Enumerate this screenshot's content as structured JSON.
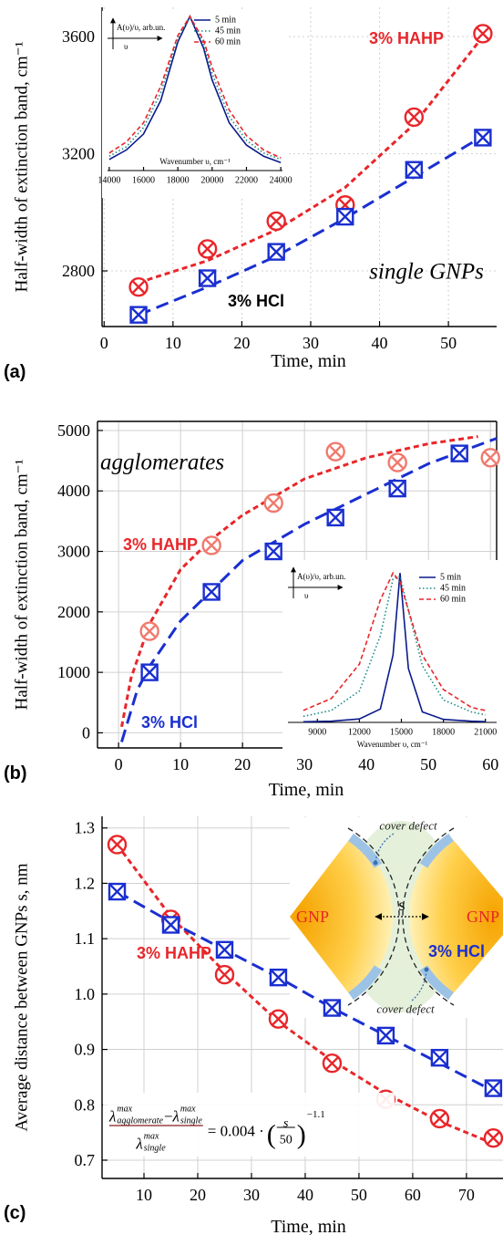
{
  "chart_data": [
    {
      "type": "scatter",
      "panel_label": "(a)",
      "x_label": "Time, min",
      "y_label": "Half-width of extinction band, cm⁻¹",
      "xlim": [
        -0.3,
        57
      ],
      "xticks": [
        0,
        10,
        20,
        30,
        40,
        50
      ],
      "ylim": [
        2610,
        3700
      ],
      "yticks": [
        2800,
        3200,
        3600
      ],
      "grid": true,
      "series": [
        {
          "name": "3% HAHP",
          "color": "#e8262a",
          "marker": "circle-x",
          "x": [
            5,
            15,
            25,
            35,
            45,
            55
          ],
          "values": [
            2745,
            2875,
            2970,
            3025,
            3325,
            3610
          ]
        },
        {
          "name": "3% HCl",
          "color": "#1a2fd0",
          "label_color": "#000000",
          "marker": "square-x",
          "x": [
            5,
            15,
            25,
            35,
            45,
            55
          ],
          "values": [
            2650,
            2775,
            2865,
            2985,
            3145,
            3255
          ]
        }
      ],
      "fits": [
        {
          "color": "#e8262a",
          "dash": "short",
          "x": [
            5,
            15,
            25,
            35,
            45,
            55
          ],
          "values": [
            2760,
            2835,
            2940,
            3085,
            3300,
            3600
          ]
        },
        {
          "color": "#1a2fd0",
          "dash": "long",
          "x": [
            5,
            15,
            25,
            35,
            45,
            55
          ],
          "values": [
            2650,
            2745,
            2850,
            2980,
            3120,
            3260
          ]
        }
      ],
      "annotations": [
        "single GNPs"
      ]
    },
    {
      "type": "line",
      "x_label": "Wavenumber υ, cm⁻¹",
      "y_label": "A(υ)/υ, arb.un.",
      "x_arrow_label": "υ",
      "xlim": [
        13900,
        24100
      ],
      "xticks": [
        14000,
        16000,
        18000,
        20000,
        22000,
        24000
      ],
      "ylim": [
        0.03,
        1.0
      ],
      "series": [
        {
          "name": "5 min",
          "color": "#0a1a8c",
          "dash": "solid",
          "x": [
            14000,
            15000,
            16000,
            17000,
            18000,
            18700,
            19500,
            20000,
            21000,
            22000,
            23000,
            24000
          ],
          "values": [
            0.1,
            0.16,
            0.26,
            0.47,
            0.84,
            1,
            0.8,
            0.6,
            0.33,
            0.19,
            0.12,
            0.08
          ]
        },
        {
          "name": "45 min",
          "color": "#1a8a8a",
          "dash": "dot",
          "x": [
            14000,
            15000,
            16000,
            17000,
            18000,
            18700,
            19500,
            20000,
            21000,
            22000,
            23000,
            24000
          ],
          "values": [
            0.12,
            0.18,
            0.3,
            0.52,
            0.86,
            1,
            0.83,
            0.64,
            0.37,
            0.22,
            0.14,
            0.1
          ]
        },
        {
          "name": "60 min",
          "color": "#e8262a",
          "dash": "dash",
          "x": [
            14000,
            15000,
            16000,
            17000,
            18000,
            18700,
            19500,
            20000,
            21000,
            22000,
            23000,
            24000
          ],
          "values": [
            0.14,
            0.21,
            0.33,
            0.56,
            0.88,
            1,
            0.85,
            0.68,
            0.41,
            0.25,
            0.16,
            0.11
          ]
        }
      ]
    },
    {
      "type": "scatter",
      "panel_label": "(b)",
      "x_label": "Time, min",
      "y_label": "Half-width of extinction band, cm⁻¹",
      "xlim": [
        -3.4,
        61
      ],
      "xticks": [
        0,
        10,
        20,
        30,
        40,
        50,
        60
      ],
      "ylim": [
        -250,
        5150
      ],
      "yticks": [
        0,
        1000,
        2000,
        3000,
        4000,
        5000
      ],
      "grid": true,
      "series": [
        {
          "name": "3% HAHP",
          "color": "#f07a6e",
          "label_color": "#e8262a",
          "marker": "circle-x",
          "x": [
            5,
            15,
            25,
            35,
            45,
            60
          ],
          "values": [
            1680,
            3100,
            3800,
            4650,
            4470,
            4550
          ]
        },
        {
          "name": "3% HCl",
          "color": "#1a2fd0",
          "marker": "square-x",
          "x": [
            5,
            15,
            25,
            35,
            45,
            55
          ],
          "values": [
            1000,
            2330,
            3000,
            3560,
            4040,
            4620
          ]
        }
      ],
      "fits": [
        {
          "color": "#e8262a",
          "dash": "short",
          "x": [
            0.5,
            2,
            5,
            10,
            15,
            20,
            30,
            40,
            50,
            58
          ],
          "values": [
            100,
            900,
            1800,
            2700,
            3200,
            3600,
            4200,
            4550,
            4780,
            4900
          ]
        },
        {
          "color": "#1a2fd0",
          "dash": "long",
          "x": [
            0.5,
            3,
            5,
            10,
            20,
            30,
            40,
            50,
            61
          ],
          "values": [
            -150,
            700,
            1100,
            1850,
            2850,
            3450,
            3950,
            4450,
            4870
          ]
        }
      ],
      "annotations": [
        "agglomerates"
      ]
    },
    {
      "type": "line",
      "x_label": "Wavenumber υ, cm⁻¹",
      "y_label": "A(υ)/υ, arb.un.",
      "x_arrow_label": "υ",
      "xlim": [
        6900,
        21800
      ],
      "xticks": [
        9000,
        12000,
        15000,
        18000,
        21000
      ],
      "ylim": [
        0,
        1.05
      ],
      "series": [
        {
          "name": "5 min",
          "color": "#0a1a8c",
          "dash": "solid",
          "x": [
            8000,
            10000,
            12000,
            13500,
            14400,
            14900,
            15500,
            16500,
            18000,
            20000,
            21000
          ],
          "values": [
            0.004,
            0.008,
            0.023,
            0.09,
            0.45,
            1,
            0.36,
            0.07,
            0.02,
            0.008,
            0.005
          ]
        },
        {
          "name": "45 min",
          "color": "#1a8a8a",
          "dash": "dot",
          "x": [
            8000,
            10000,
            12000,
            13500,
            14400,
            14900,
            15500,
            16500,
            18000,
            20000,
            21000
          ],
          "values": [
            0.04,
            0.08,
            0.21,
            0.58,
            0.96,
            0.98,
            0.75,
            0.38,
            0.15,
            0.07,
            0.05
          ]
        },
        {
          "name": "60 min",
          "color": "#e8262a",
          "dash": "dash",
          "x": [
            8000,
            10000,
            12000,
            13500,
            14400,
            14900,
            15500,
            16500,
            18000,
            20000,
            21000
          ],
          "values": [
            0.08,
            0.16,
            0.39,
            0.82,
            1,
            0.94,
            0.75,
            0.45,
            0.22,
            0.1,
            0.08
          ]
        }
      ]
    },
    {
      "type": "scatter",
      "panel_label": "(c)",
      "x_label": "Time, min",
      "y_label": "Average distance between GNPs s, nm",
      "xlim": [
        2.2,
        76.8
      ],
      "xticks": [
        10,
        20,
        30,
        40,
        50,
        60,
        70
      ],
      "ylim": [
        0.667,
        1.321
      ],
      "yticks": [
        0.7,
        0.8,
        0.9,
        {
          "value": 1,
          "label": "1.0"
        },
        1.1,
        1.2,
        1.3
      ],
      "grid": true,
      "series": [
        {
          "name": "3% HAHP",
          "color": "#e8262a",
          "marker": "circle-x",
          "x": [
            5,
            15,
            25,
            35,
            45,
            55,
            65,
            75
          ],
          "values": [
            1.27,
            1.135,
            1.035,
            0.955,
            0.875,
            0.81,
            0.775,
            0.74
          ]
        },
        {
          "name": "3% HCl",
          "color": "#1a2fd0",
          "marker": "square-x",
          "x": [
            5,
            15,
            25,
            35,
            45,
            55,
            65,
            75
          ],
          "values": [
            1.185,
            1.125,
            1.08,
            1.03,
            0.975,
            0.925,
            0.885,
            0.83
          ]
        }
      ],
      "fits": [
        {
          "color": "#e8262a",
          "dash": "short",
          "x": [
            5,
            15,
            25,
            35,
            45,
            55,
            65,
            75
          ],
          "values": [
            1.27,
            1.14,
            1.04,
            0.95,
            0.88,
            0.82,
            0.77,
            0.73
          ]
        },
        {
          "color": "#1a2fd0",
          "dash": "long",
          "x": [
            5,
            15,
            25,
            35,
            45,
            55,
            65,
            75
          ],
          "values": [
            1.185,
            1.13,
            1.08,
            1.03,
            0.975,
            0.925,
            0.875,
            0.825
          ]
        }
      ],
      "diagram": {
        "left_label": "GNP",
        "right_label": "GNP",
        "gap_label": "s",
        "defect_labels": [
          "cover defect",
          "cover defect"
        ]
      },
      "formula": {
        "numerator": [
          {
            "base": "λ",
            "sup": "max",
            "sub": "agglomerate"
          },
          {
            "base": " − "
          },
          {
            "base": "λ",
            "sup": "max",
            "sub": "single"
          }
        ],
        "denominator": [
          {
            "base": "λ",
            "sup": "max",
            "sub": "single"
          }
        ],
        "rhs": "= 0.004 ·",
        "open": "(",
        "fraction": [
          "s",
          "50"
        ],
        "close": ")",
        "exponent": "−1.1"
      }
    }
  ]
}
